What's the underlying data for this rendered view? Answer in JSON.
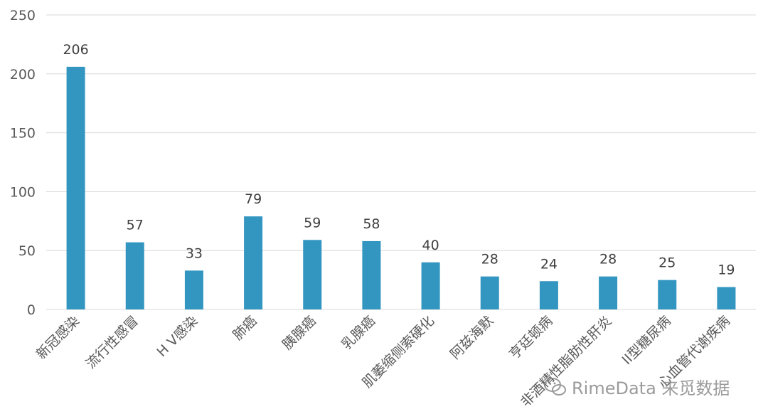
{
  "chart_data": {
    "type": "bar",
    "categories": [
      "新冠感染",
      "流行性感冒",
      "H V感染",
      "肺癌",
      "胰腺癌",
      "乳腺癌",
      "肌萎缩侧索硬化",
      "阿兹海默",
      "亨廷顿病",
      "非酒精性脂肪性肝炎",
      "II型糖尿病",
      "心血管代谢疾病"
    ],
    "values": [
      206,
      57,
      33,
      79,
      59,
      58,
      40,
      28,
      24,
      28,
      25,
      19
    ],
    "yticks": [
      0,
      50,
      100,
      150,
      200,
      250
    ],
    "ylim": [
      0,
      250
    ],
    "color": "#3296c1",
    "grid": true
  },
  "watermark": {
    "text": "RimeData 来觅数据",
    "icon": "wechat-icon"
  }
}
